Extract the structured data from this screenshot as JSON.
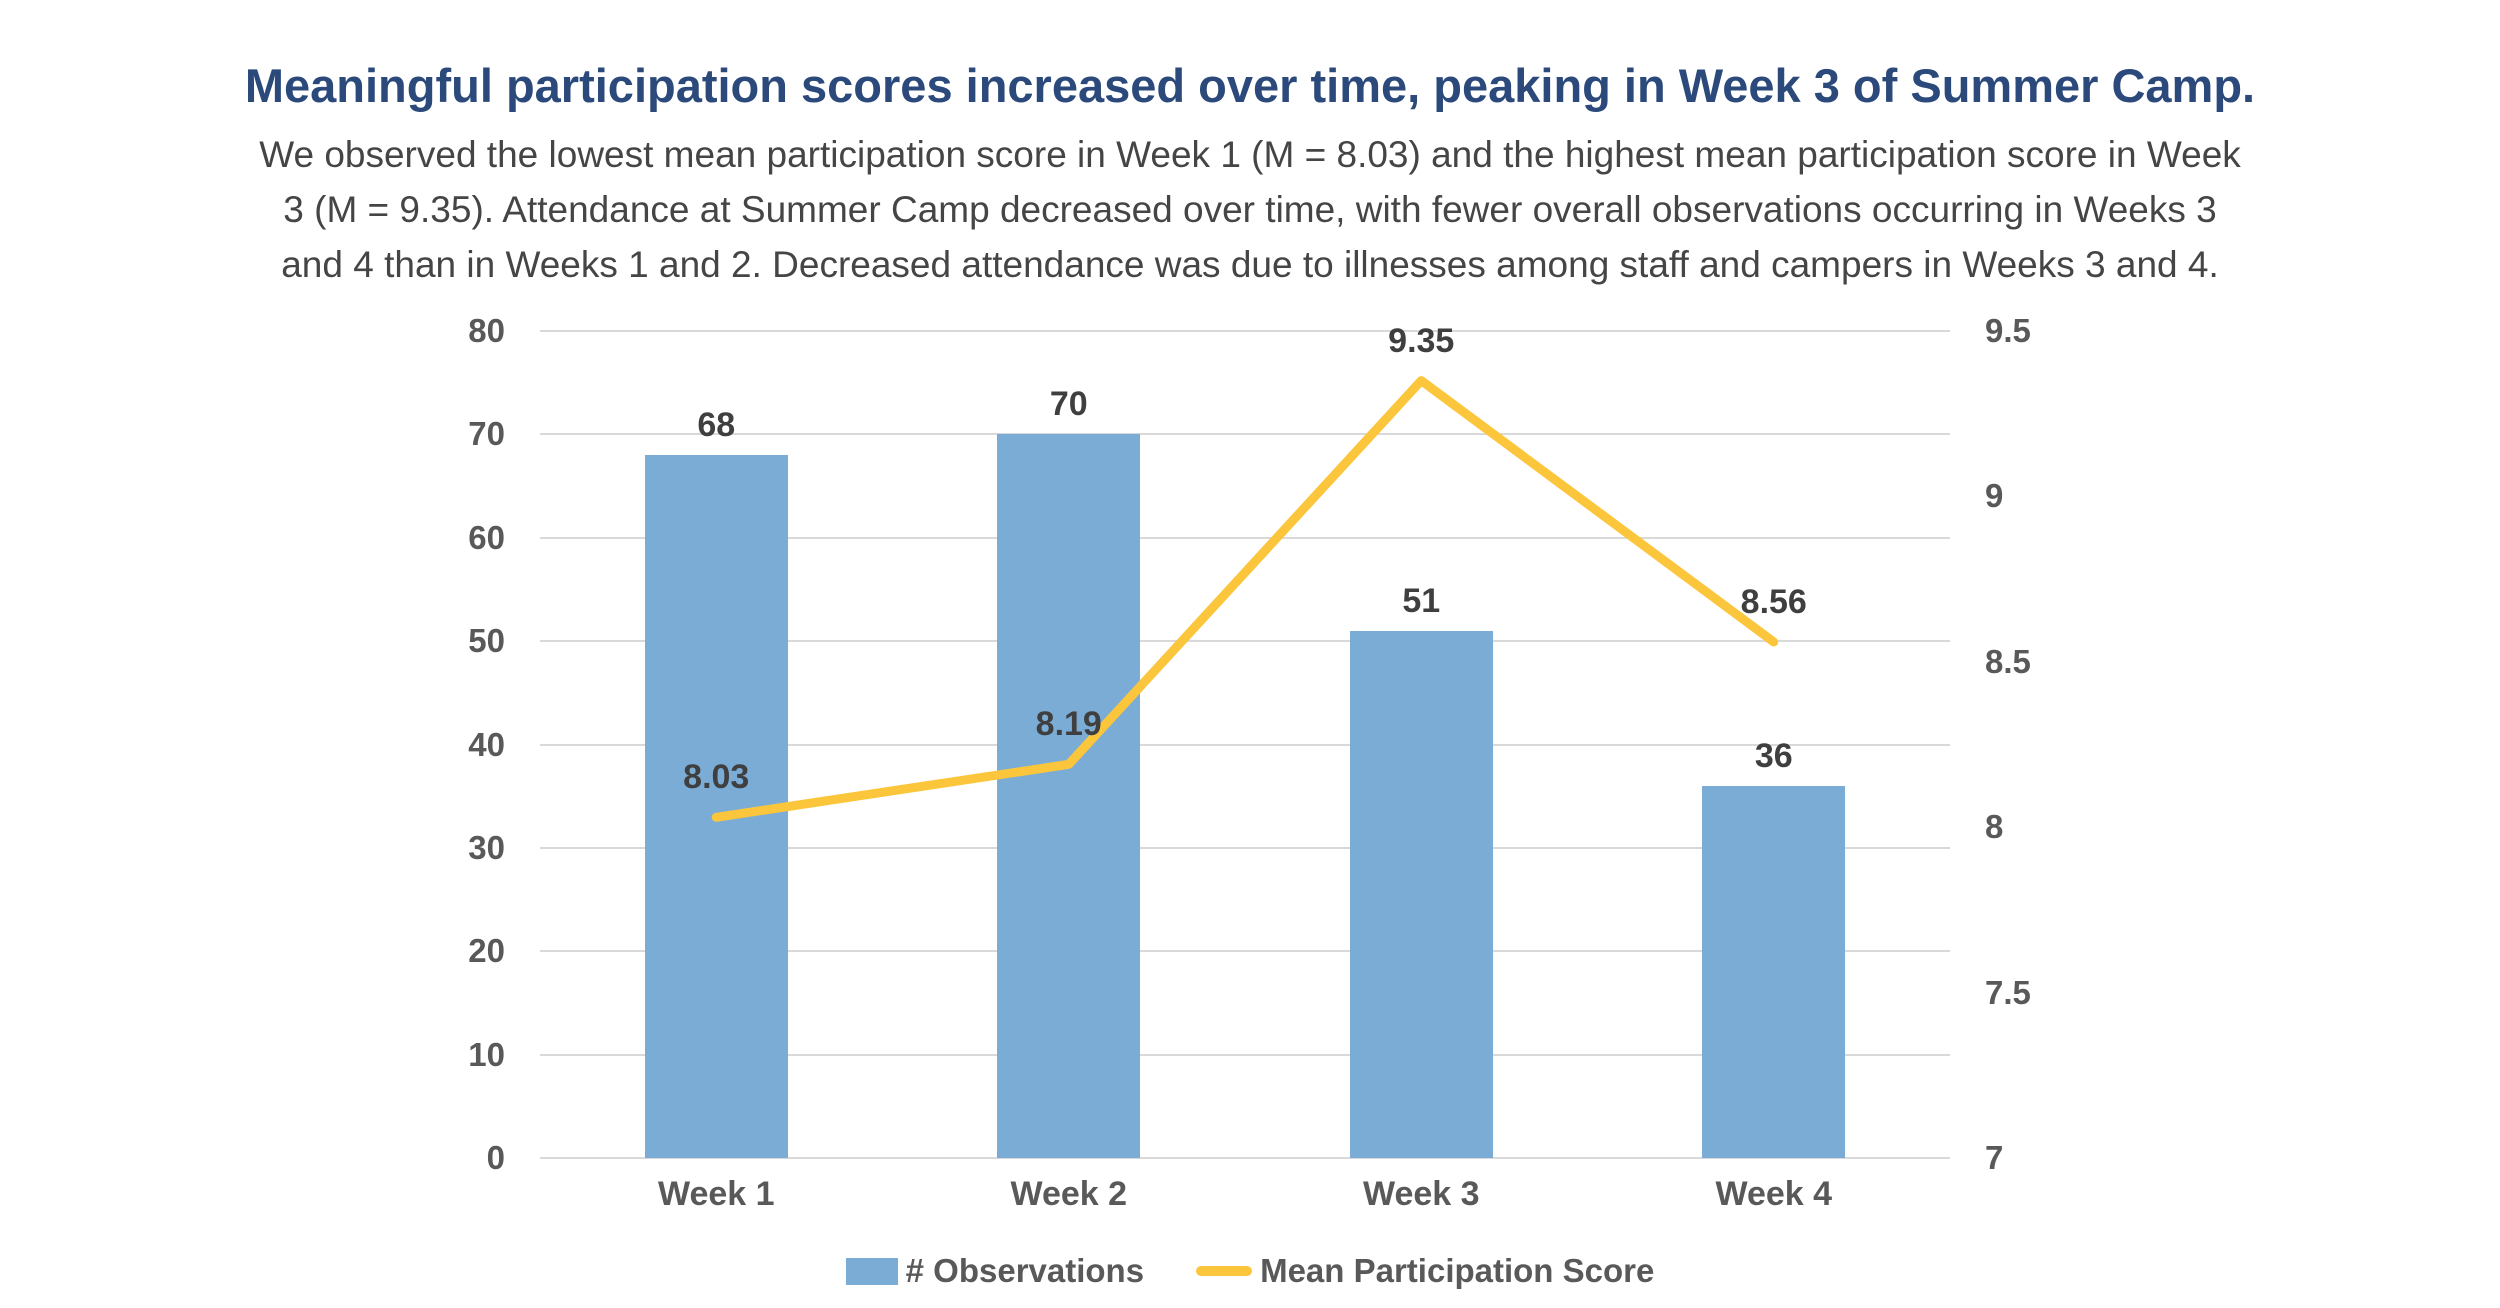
{
  "header": {
    "title": "Meaningful participation scores increased over time, peaking in Week 3 of Summer Camp.",
    "subtitle_lines": [
      "We observed the lowest mean participation score in Week 1 (M = 8.03) and the highest mean participation score in Week",
      "3 (M = 9.35). Attendance at Summer Camp decreased over time, with fewer overall observations occurring in Weeks 3",
      "and 4 than in Weeks 1 and 2. Decreased attendance was due to illnesses among staff and campers in Weeks 3 and 4."
    ]
  },
  "colors": {
    "title": "#2B4A7B",
    "subtitle": "#454545",
    "bar": "#7AACD6",
    "line": "#FBC63C",
    "gridline": "#D9D9D9",
    "axis_text": "#595959",
    "data_label": "#3F3F3F"
  },
  "chart_data": {
    "type": "combo-bar-line",
    "categories": [
      "Week 1",
      "Week 2",
      "Week 3",
      "Week 4"
    ],
    "series": [
      {
        "name": "# Observations",
        "type": "bar",
        "axis": "left",
        "values": [
          68,
          70,
          51,
          36
        ]
      },
      {
        "name": "Mean Participation Score",
        "type": "line",
        "axis": "right",
        "values": [
          8.03,
          8.19,
          9.35,
          8.56
        ]
      }
    ],
    "left_axis": {
      "min": 0,
      "max": 80,
      "ticks": [
        80,
        70,
        60,
        50,
        40,
        30,
        20,
        10,
        0
      ]
    },
    "right_axis": {
      "min": 7,
      "max": 9.5,
      "ticks": [
        9.5,
        9,
        8.5,
        8,
        7.5,
        7
      ]
    },
    "grid": true,
    "legend_position": "bottom"
  },
  "legend": {
    "items": [
      {
        "label": "# Observations",
        "swatch": "bar-square"
      },
      {
        "label": "Mean Participation Score",
        "swatch": "line-dash"
      }
    ]
  }
}
